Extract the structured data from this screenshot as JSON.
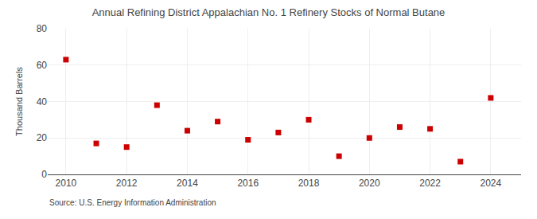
{
  "chart_data": {
    "type": "scatter",
    "title": "Annual Refining District Appalachian No. 1 Refinery Stocks of Normal Butane",
    "ylabel": "Thousand Barrels",
    "annotations": [
      "Source: U.S. Energy Information Administration"
    ],
    "x": [
      2010,
      2011,
      2012,
      2013,
      2014,
      2015,
      2016,
      2017,
      2018,
      2019,
      2020,
      2021,
      2022,
      2023,
      2024
    ],
    "values": [
      63,
      17,
      15,
      38,
      24,
      29,
      19,
      23,
      30,
      10,
      20,
      26,
      25,
      7,
      42
    ],
    "color": "#cc0000",
    "marker": "square",
    "xlim": [
      2009.4,
      2025.0
    ],
    "xticks": [
      2010,
      2012,
      2014,
      2016,
      2018,
      2020,
      2022,
      2024
    ],
    "ylim": [
      0,
      80
    ],
    "yticks": [
      0,
      20,
      40,
      60,
      80
    ],
    "grid": true
  }
}
